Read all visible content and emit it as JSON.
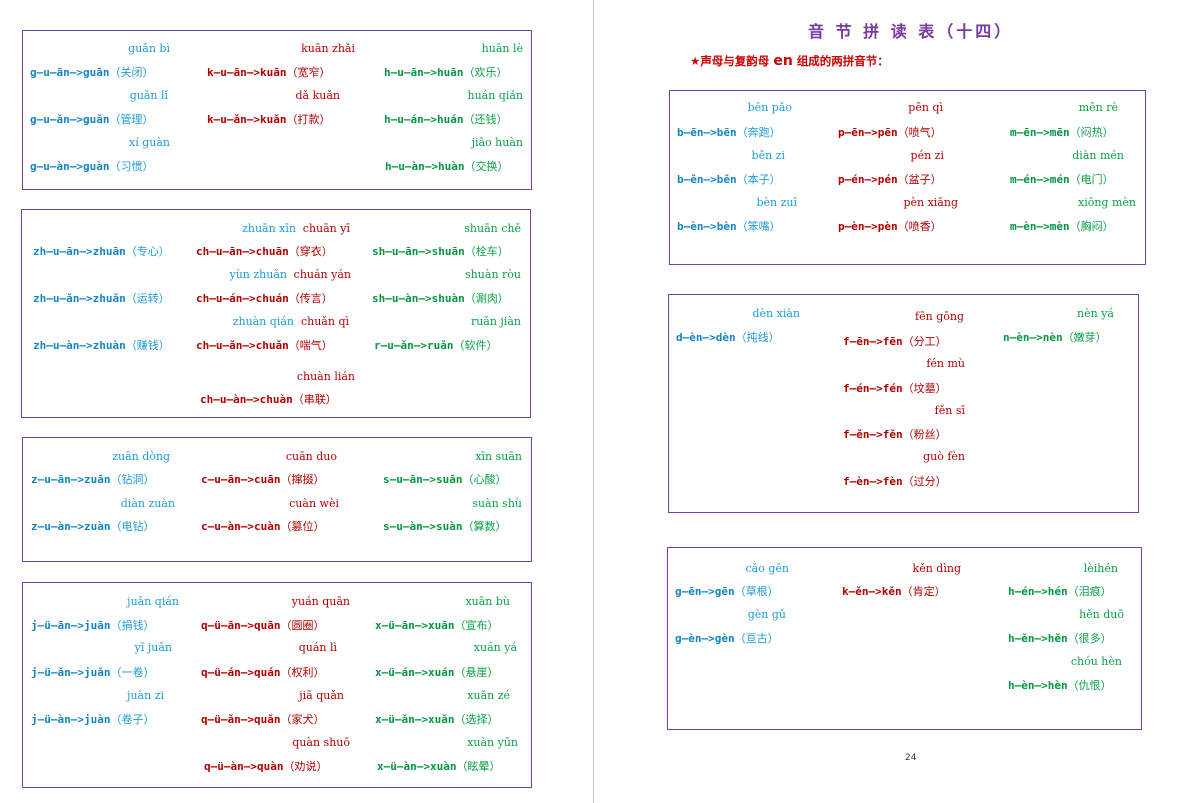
{
  "page": {
    "title": "音 节 拼 读 表（十四）",
    "subtitle_star": "★",
    "subtitle_before": "声母与复韵母",
    "subtitle_final": "en",
    "subtitle_after": "组成的两拼音节：",
    "page_number": "24"
  },
  "colors": {
    "blue": "#1e9bd6",
    "red": "#b30000",
    "green": "#0aa048",
    "border": "#7b3f9e",
    "title": "#7a3a9c"
  },
  "words": [
    {
      "py": "guān bì",
      "sp": "g—u—ān—>guān",
      "cn": "（关闭）",
      "c": "blue"
    },
    {
      "py": "kuān zhǎi",
      "sp": "k—u—ān—>kuān",
      "cn": "（宽窄）",
      "c": "red"
    },
    {
      "py": "huān lè",
      "sp": "h—u—ān—>huān",
      "cn": "（欢乐）",
      "c": "green"
    },
    {
      "py": "guǎn lǐ",
      "sp": "g—u—ǎn—>guǎn",
      "cn": "（管理）",
      "c": "blue"
    },
    {
      "py": "dǎ kuǎn",
      "sp": "k—u—ǎn—>kuǎn",
      "cn": "（打款）",
      "c": "red"
    },
    {
      "py": "huán qián",
      "sp": "h—u—án—>huán",
      "cn": "（还钱）",
      "c": "green"
    },
    {
      "py": "xí guàn",
      "sp": "g—u—àn—>guàn",
      "cn": "（习惯）",
      "c": "blue"
    },
    {
      "py": "jiāo huàn",
      "sp": "h—u—àn—>huàn",
      "cn": "（交换）",
      "c": "green"
    },
    {
      "py": "zhuān xīn",
      "sp": "zh—u—ān—>zhuān",
      "cn": "（专心）",
      "c": "blue"
    },
    {
      "py": "chuān yī",
      "sp": "ch—u—ān—>chuān",
      "cn": "（穿衣）",
      "c": "red"
    },
    {
      "py": "shuān chē",
      "sp": "sh—u—ān—>shuān",
      "cn": "（栓车）",
      "c": "green"
    },
    {
      "py": "yùn zhuǎn",
      "sp": "zh—u—ǎn—>zhuǎn",
      "cn": "（运转）",
      "c": "blue"
    },
    {
      "py": "chuán yán",
      "sp": "ch—u—án—>chuán",
      "cn": "（传言）",
      "c": "red"
    },
    {
      "py": "shuàn ròu",
      "sp": "sh—u—àn—>shuàn",
      "cn": "（涮肉）",
      "c": "green"
    },
    {
      "py": "zhuàn qián",
      "sp": "zh—u—àn—>zhuàn",
      "cn": "（赚钱）",
      "c": "blue"
    },
    {
      "py": "chuǎn qì",
      "sp": "ch—u—ǎn—>chuǎn",
      "cn": "（喘气）",
      "c": "red"
    },
    {
      "py": "ruǎn jiàn",
      "sp": "r—u—ǎn—>ruǎn",
      "cn": "（软件）",
      "c": "green"
    },
    {
      "py": "chuàn lián",
      "sp": "ch—u—àn—>chuàn",
      "cn": "（串联）",
      "c": "red"
    },
    {
      "py": "zuān dòng",
      "sp": "z—u—ān—>zuān",
      "cn": "（钻洞）",
      "c": "blue"
    },
    {
      "py": "cuān duo",
      "sp": "c—u—ān—>cuān",
      "cn": "（撺掇）",
      "c": "red"
    },
    {
      "py": "xīn suān",
      "sp": "s—u—ān—>suān",
      "cn": "（心酸）",
      "c": "green"
    },
    {
      "py": "diàn zuàn",
      "sp": "z—u—àn—>zuàn",
      "cn": "（电钻）",
      "c": "blue"
    },
    {
      "py": "cuàn wèi",
      "sp": "c—u—àn—>cuàn",
      "cn": "（篡位）",
      "c": "red"
    },
    {
      "py": "suàn shù",
      "sp": "s—u—àn—>suàn",
      "cn": "（算数）",
      "c": "green"
    },
    {
      "py": "juān qián",
      "sp": "j—ü—ān—>juān",
      "cn": "（捐钱）",
      "c": "blue"
    },
    {
      "py": "yuán quān",
      "sp": "q—ü—ān—>quān",
      "cn": "（圆圈）",
      "c": "red"
    },
    {
      "py": "xuān bù",
      "sp": "x—ü—ān—>xuān",
      "cn": "（宣布）",
      "c": "green"
    },
    {
      "py": "yī juǎn",
      "sp": "j—ü—ǎn—>juǎn",
      "cn": "（一卷）",
      "c": "blue"
    },
    {
      "py": "quán lì",
      "sp": "q—ü—án—>quán",
      "cn": "（权利）",
      "c": "red"
    },
    {
      "py": "xuán yá",
      "sp": "x—ü—án—>xuán",
      "cn": "（悬崖）",
      "c": "green"
    },
    {
      "py": "juàn zi",
      "sp": "j—ü—àn—>juàn",
      "cn": "（卷子）",
      "c": "blue"
    },
    {
      "py": "jiā quǎn",
      "sp": "q—ü—ǎn—>quǎn",
      "cn": "（家犬）",
      "c": "red"
    },
    {
      "py": "xuǎn zé",
      "sp": "x—ü—ǎn—>xuǎn",
      "cn": "（选择）",
      "c": "green"
    },
    {
      "py": "quàn shuō",
      "sp": "q—ü—àn—>quàn",
      "cn": "（劝说）",
      "c": "red"
    },
    {
      "py": "xuàn yūn",
      "sp": "x—ü—àn—>xuàn",
      "cn": "（眩晕）",
      "c": "green"
    },
    {
      "py": "bēn pǎo",
      "sp": "b—ēn—>bēn",
      "cn": "（奔跑）",
      "c": "blue"
    },
    {
      "py": "pēn qì",
      "sp": "p—ēn—>pēn",
      "cn": "（喷气）",
      "c": "red"
    },
    {
      "py": "mēn rè",
      "sp": "m—ēn—>mēn",
      "cn": "（闷热）",
      "c": "green"
    },
    {
      "py": "běn zi",
      "sp": "b—ěn—>běn",
      "cn": "（本子）",
      "c": "blue"
    },
    {
      "py": "pén zi",
      "sp": "p—én—>pén",
      "cn": "（盆子）",
      "c": "red"
    },
    {
      "py": "diàn mén",
      "sp": "m—én—>mén",
      "cn": "（电门）",
      "c": "green"
    },
    {
      "py": "bèn zuǐ",
      "sp": "b—èn—>bèn",
      "cn": "（笨嘴）",
      "c": "blue"
    },
    {
      "py": "pèn xiāng",
      "sp": "p—èn—>pèn",
      "cn": "（喷香）",
      "c": "red"
    },
    {
      "py": "xiōng mèn",
      "sp": "m—èn—>mèn",
      "cn": "（胸闷）",
      "c": "green"
    },
    {
      "py": "dèn xiàn",
      "sp": "d—èn—>dèn",
      "cn": "（扽线）",
      "c": "blue"
    },
    {
      "py": "fēn gōng",
      "sp": "f—ēn—>fēn",
      "cn": "（分工）",
      "c": "red"
    },
    {
      "py": "nèn yá",
      "sp": "n—èn—>nèn",
      "cn": "（嫩芽）",
      "c": "green"
    },
    {
      "py": "fén mù",
      "sp": "f—én—>fén",
      "cn": "（坟墓）",
      "c": "red"
    },
    {
      "py": "fěn sī",
      "sp": "f—ěn—>fěn",
      "cn": "（粉丝）",
      "c": "red"
    },
    {
      "py": "guò fèn",
      "sp": "f—èn—>fèn",
      "cn": "（过分）",
      "c": "red"
    },
    {
      "py": "cǎo gēn",
      "sp": "g—ēn—>gēn",
      "cn": "（草根）",
      "c": "blue"
    },
    {
      "py": "kěn dìng",
      "sp": "k—ěn—>kěn",
      "cn": "（肯定）",
      "c": "red"
    },
    {
      "py": "lèihén",
      "sp": "h—én—>hén",
      "cn": "（泪痕）",
      "c": "green"
    },
    {
      "py": "gèn gǔ",
      "sp": "g—èn—>gèn",
      "cn": "（亘古）",
      "c": "blue"
    },
    {
      "py": "hěn duō",
      "sp": "h—ěn—>hěn",
      "cn": "（很多）",
      "c": "green"
    },
    {
      "py": "chóu hèn",
      "sp": "h—èn—>hèn",
      "cn": "（仇恨）",
      "c": "green"
    }
  ]
}
